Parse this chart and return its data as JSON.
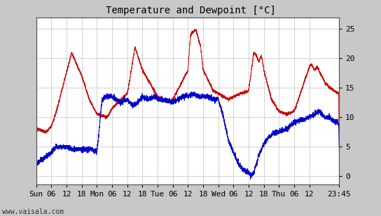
{
  "title": "Temperature and Dewpoint [°C]",
  "bg_color": "#c8c8c8",
  "plot_bg_color": "#ffffff",
  "grid_color": "#c0c0c0",
  "temp_color": "#cc0000",
  "dewpoint_color": "#0000cc",
  "ylabel_right": [
    "0",
    "5",
    "10",
    "15",
    "20",
    "25"
  ],
  "yticks": [
    0,
    5,
    10,
    15,
    20,
    25
  ],
  "ylim": [
    -1.5,
    27
  ],
  "xlabel_bottom": [
    "Sun",
    "06",
    "12",
    "18",
    "Mon",
    "06",
    "12",
    "18",
    "Tue",
    "06",
    "12",
    "18",
    "Wed",
    "06",
    "12",
    "18",
    "Thu",
    "06",
    "12",
    "23:45"
  ],
  "xtick_hours": [
    0,
    6,
    12,
    18,
    24,
    30,
    36,
    42,
    48,
    54,
    60,
    66,
    72,
    78,
    84,
    90,
    96,
    102,
    108,
    119.75
  ],
  "watermark": "www.vaisala.com",
  "title_fontsize": 10,
  "tick_fontsize": 8,
  "watermark_fontsize": 7,
  "line_width": 0.7,
  "total_hours": 119.75
}
